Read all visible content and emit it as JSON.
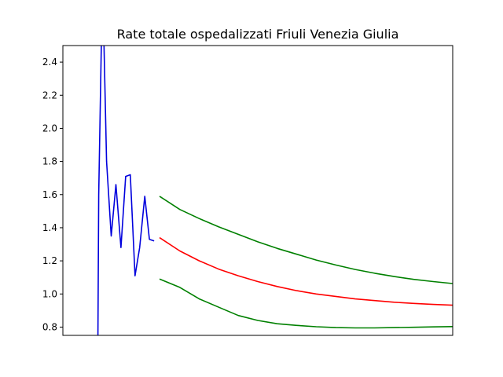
{
  "chart_data": {
    "type": "line",
    "title": "Rate totale ospedalizzati Friuli Venezia Giulia",
    "xlabel": "",
    "ylabel": "",
    "ylim": [
      0.75,
      2.5
    ],
    "xlim": [
      0,
      100
    ],
    "yticks": [
      0.8,
      1.0,
      1.2,
      1.4,
      1.6,
      1.8,
      2.0,
      2.2,
      2.4
    ],
    "ytick_labels": [
      "0.8",
      "1.0",
      "1.2",
      "1.4",
      "1.6",
      "1.8",
      "2.0",
      "2.2",
      "2.4"
    ],
    "xticks_visible": false,
    "grid": false,
    "legend": "none",
    "series": [
      {
        "role": "observed",
        "color": "#0000dd",
        "x": [
          9.0,
          9.2,
          9.9,
          10.5,
          11.2,
          12.4,
          13.6,
          14.9,
          16.1,
          17.3,
          18.5,
          19.7,
          21.0,
          22.2,
          23.4
        ],
        "y": [
          0.75,
          1.6,
          2.55,
          2.55,
          1.8,
          1.35,
          1.66,
          1.28,
          1.71,
          1.72,
          1.11,
          1.28,
          1.59,
          1.33,
          1.32
        ]
      },
      {
        "role": "forecast",
        "color": "#ff0000",
        "x": [
          24.8,
          30,
          35,
          40,
          45,
          50,
          55,
          60,
          65,
          70,
          75,
          80,
          85,
          90,
          95,
          100
        ],
        "y": [
          1.34,
          1.26,
          1.2,
          1.15,
          1.11,
          1.075,
          1.045,
          1.02,
          1.0,
          0.985,
          0.97,
          0.96,
          0.95,
          0.943,
          0.937,
          0.932
        ]
      },
      {
        "role": "upper-bound",
        "color": "#008000",
        "x": [
          24.8,
          30,
          35,
          40,
          45,
          50,
          55,
          60,
          65,
          70,
          75,
          80,
          85,
          90,
          95,
          100
        ],
        "y": [
          1.59,
          1.51,
          1.455,
          1.405,
          1.36,
          1.315,
          1.275,
          1.24,
          1.205,
          1.175,
          1.148,
          1.125,
          1.105,
          1.088,
          1.075,
          1.063
        ]
      },
      {
        "role": "lower-bound",
        "color": "#008000",
        "x": [
          24.8,
          30,
          35,
          40,
          45,
          50,
          55,
          60,
          65,
          70,
          75,
          80,
          85,
          90,
          95,
          100
        ],
        "y": [
          1.09,
          1.04,
          0.97,
          0.92,
          0.87,
          0.84,
          0.82,
          0.81,
          0.802,
          0.797,
          0.795,
          0.795,
          0.797,
          0.799,
          0.801,
          0.803
        ]
      }
    ]
  }
}
